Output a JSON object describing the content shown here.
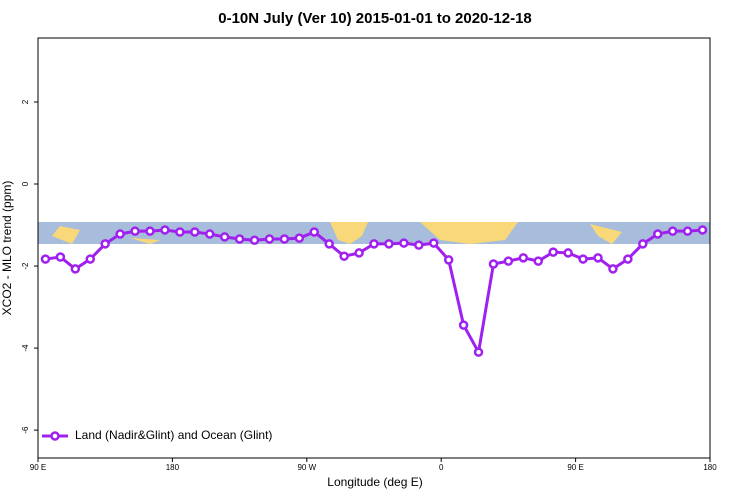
{
  "chart_data": {
    "type": "line",
    "title": "0-10N July (Ver 10)   2015-01-01 to 2020-12-18",
    "xlabel": "Longitude (deg E)",
    "ylabel": "XCO2 - MLO trend (ppm)",
    "x": [
      95,
      105,
      115,
      125,
      135,
      145,
      155,
      165,
      175,
      185,
      195,
      205,
      215,
      225,
      235,
      245,
      255,
      265,
      275,
      285,
      295,
      305,
      315,
      325,
      335,
      345,
      355,
      365,
      375,
      385,
      395,
      405,
      415,
      425,
      435,
      445,
      455,
      465,
      475,
      485,
      495,
      505,
      515,
      525,
      535
    ],
    "series": [
      {
        "name": "Land (Nadir&Glint) and Ocean (Glint)",
        "color": "#a020f0",
        "values": [
          -1.83,
          -1.78,
          -2.07,
          -1.83,
          -1.46,
          -1.22,
          -1.15,
          -1.15,
          -1.12,
          -1.17,
          -1.17,
          -1.22,
          -1.29,
          -1.34,
          -1.37,
          -1.34,
          -1.34,
          -1.32,
          -1.17,
          -1.46,
          -1.76,
          -1.68,
          -1.46,
          -1.46,
          -1.44,
          -1.49,
          -1.44,
          -1.85,
          -3.44,
          -4.1,
          -1.95,
          -1.88,
          -1.8,
          -1.88,
          -1.66,
          -1.68,
          -1.83,
          -1.8,
          -2.07,
          -1.83,
          -1.46,
          -1.22,
          -1.15,
          -1.15,
          -1.12
        ]
      }
    ],
    "xlim": [
      90,
      540
    ],
    "xticks": [
      {
        "value": 90,
        "label": "90 E"
      },
      {
        "value": 180,
        "label": "180"
      },
      {
        "value": 270,
        "label": "90 W"
      },
      {
        "value": 360,
        "label": "0"
      },
      {
        "value": 450,
        "label": "90 E"
      },
      {
        "value": 540,
        "label": "180"
      }
    ],
    "ylim": [
      -6.68,
      3.56
    ],
    "yticks": [
      2,
      0,
      -2,
      -4,
      -6
    ],
    "legend": "bottom-left"
  }
}
